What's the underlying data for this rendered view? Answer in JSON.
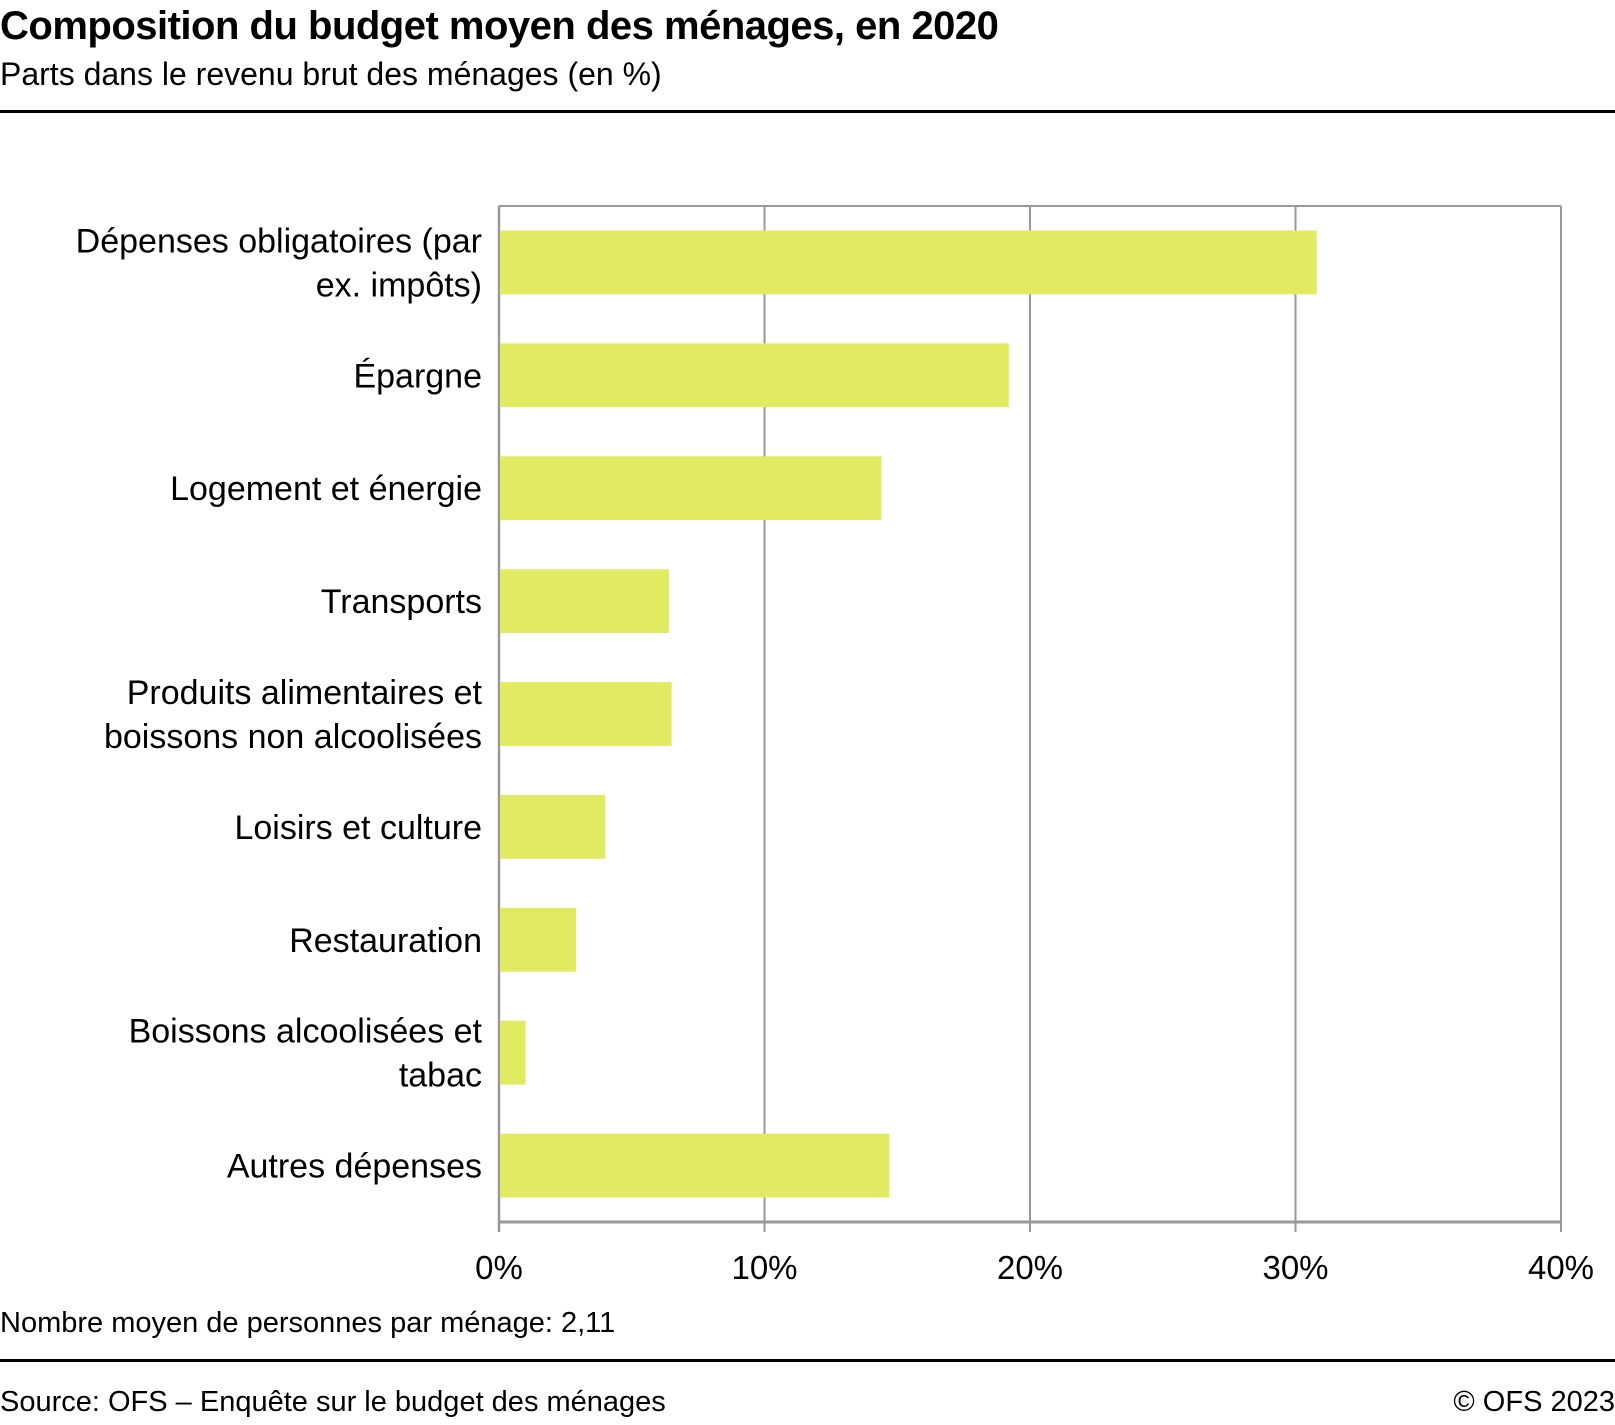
{
  "header": {
    "title": "Composition du budget moyen des ménages, en 2020",
    "subtitle": "Parts dans le revenu brut des ménages (en %)"
  },
  "footer": {
    "note": "Nombre moyen de personnes par ménage: 2,11",
    "source": "Source: OFS – Enquête sur le budget des ménages",
    "copyright": "© OFS 2023"
  },
  "colors": {
    "bar": "#e0eb62",
    "grid": "#999999",
    "rule": "#000000"
  },
  "chart_data": {
    "type": "bar",
    "orientation": "horizontal",
    "title": "Composition du budget moyen des ménages, en 2020",
    "subtitle": "Parts dans le revenu brut des ménages (en %)",
    "xlabel": "",
    "ylabel": "",
    "xlim": [
      0,
      40
    ],
    "xticks": [
      0,
      10,
      20,
      30,
      40
    ],
    "xtick_labels": [
      "0%",
      "10%",
      "20%",
      "30%",
      "40%"
    ],
    "grid": true,
    "legend": "none",
    "categories": [
      [
        "Dépenses obligatoires (par",
        "ex. impôts)"
      ],
      [
        "Épargne"
      ],
      [
        "Logement et énergie"
      ],
      [
        "Transports"
      ],
      [
        "Produits alimentaires et",
        "boissons non alcoolisées"
      ],
      [
        "Loisirs et culture"
      ],
      [
        "Restauration"
      ],
      [
        "Boissons alcoolisées et",
        "tabac"
      ],
      [
        "Autres dépenses"
      ]
    ],
    "values": [
      30.8,
      19.2,
      14.4,
      6.4,
      6.5,
      4.0,
      2.9,
      1.0,
      14.7
    ],
    "unit": "%"
  }
}
